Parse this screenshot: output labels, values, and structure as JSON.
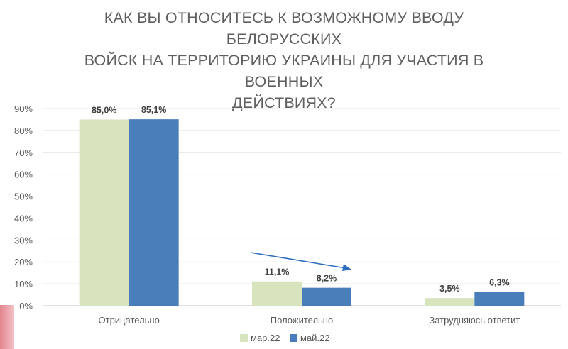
{
  "chart_data": {
    "type": "bar",
    "title_lines": [
      "КАК ВЫ ОТНОСИТЕСЬ К ВОЗМОЖНОМУ ВВОДУ БЕЛОРУССКИХ",
      "ВОЙСК НА ТЕРРИТОРИЮ УКРАИНЫ ДЛЯ УЧАСТИЯ В ВОЕННЫХ",
      "ДЕЙСТВИЯХ?"
    ],
    "categories": [
      "Отрицательно",
      "Положительно",
      "Затрудняюсь ответит"
    ],
    "series": [
      {
        "name": "мар.22",
        "color": "#d7e4bd",
        "values": [
          85.0,
          11.1,
          3.5
        ],
        "labels": [
          "85,0%",
          "11,1%",
          "3,5%"
        ]
      },
      {
        "name": "май.22",
        "color": "#4a7ebb",
        "values": [
          85.1,
          8.2,
          6.3
        ],
        "labels": [
          "85,1%",
          "8,2%",
          "6,3%"
        ]
      }
    ],
    "y_ticks": [
      0,
      10,
      20,
      30,
      40,
      50,
      60,
      70,
      80,
      90
    ],
    "y_tick_labels": [
      "0%",
      "10%",
      "20%",
      "30%",
      "40%",
      "50%",
      "60%",
      "70%",
      "80%",
      "90%"
    ],
    "ylim": [
      0,
      90
    ],
    "grid": true,
    "legend": "bottom-right",
    "annotations": [
      {
        "type": "trend-arrow",
        "category": "Положительно",
        "from_series": "мар.22",
        "to_series": "май.22",
        "color": "#2e6dbf"
      }
    ]
  }
}
